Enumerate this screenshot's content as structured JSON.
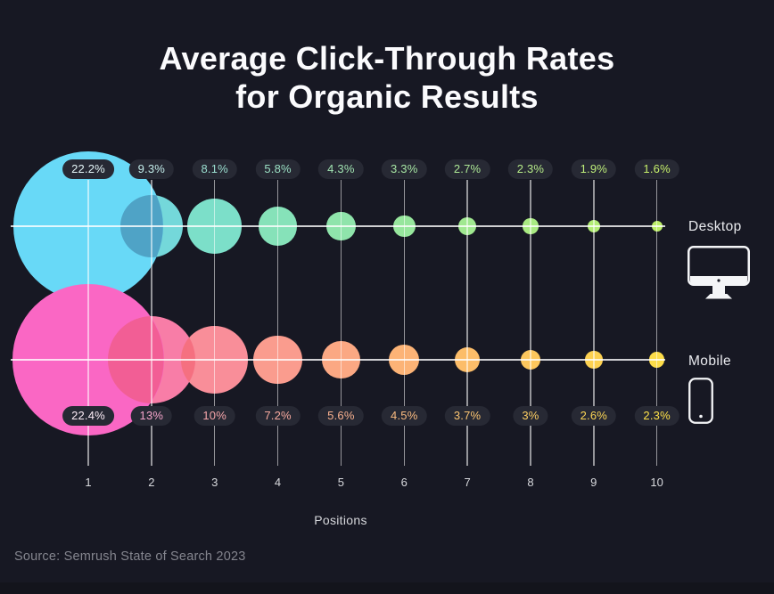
{
  "title": {
    "line1": "Average Click-Through Rates",
    "line2": "for Organic Results"
  },
  "legend": {
    "desktop_label": "Desktop",
    "mobile_label": "Mobile"
  },
  "xaxis": {
    "label": "Positions"
  },
  "source": "Source: Semrush State of Search 2023",
  "colors": {
    "background": "#171823",
    "footer_strip": "#13141c",
    "pill_background": "#272934",
    "grid_line": "rgba(255,255,255,0.55)",
    "axis_line": "rgba(255,255,255,0.8)",
    "title_text": "#fbfbfd",
    "source_text": "#84858e"
  },
  "chart_data": {
    "type": "bubble",
    "title": "Average Click-Through Rates for Organic Results",
    "xlabel": "Positions",
    "categories": [
      "1",
      "2",
      "3",
      "4",
      "5",
      "6",
      "7",
      "8",
      "9",
      "10"
    ],
    "legend_position": "right",
    "grid": true,
    "series": [
      {
        "name": "Desktop",
        "values": [
          22.2,
          9.3,
          8.1,
          5.8,
          4.3,
          3.3,
          2.7,
          2.3,
          1.9,
          1.6
        ],
        "labels": [
          "22.2%",
          "9.3%",
          "8.1%",
          "5.8%",
          "4.3%",
          "3.3%",
          "2.7%",
          "2.3%",
          "1.9%",
          "1.6%"
        ],
        "bubble_colors": [
          "#68d9f7",
          "#74d8da",
          "#7cdfc9",
          "#86e2b9",
          "#8fe4ab",
          "#97e69d",
          "#a0e890",
          "#a9ea82",
          "#b2ec75",
          "#bcee67"
        ],
        "label_colors": [
          "#e4f5f7",
          "#c2ecea",
          "#9bdfd0",
          "#9be0c4",
          "#a0e2b1",
          "#a6e5a3",
          "#ade896",
          "#b5ea88",
          "#bded7a",
          "#c6f06b"
        ]
      },
      {
        "name": "Mobile",
        "values": [
          22.4,
          13,
          10,
          7.2,
          5.6,
          4.5,
          3.7,
          3,
          2.6,
          2.3
        ],
        "labels": [
          "22.4%",
          "13%",
          "10%",
          "7.2%",
          "5.6%",
          "4.5%",
          "3.7%",
          "3%",
          "2.6%",
          "2.3%"
        ],
        "bubble_colors": [
          "#fa67c4",
          "#f87da7",
          "#f98e99",
          "#fa9c8e",
          "#fba883",
          "#fcb376",
          "#fcbd69",
          "#fdc75d",
          "#fdd151",
          "#fcdc49"
        ],
        "label_colors": [
          "#fcecf6",
          "#f4a4ca",
          "#f7a6ab",
          "#f8aa9f",
          "#f9b18f",
          "#fabb80",
          "#fbc471",
          "#fccd62",
          "#fdd755",
          "#fee149"
        ]
      }
    ],
    "overlaps": [
      {
        "row": "desktop",
        "pair": [
          1,
          2
        ],
        "color": "#4fa3c6"
      },
      {
        "row": "mobile",
        "pair": [
          1,
          2
        ],
        "color": "#f25e95"
      },
      {
        "row": "mobile",
        "pair": [
          2,
          3
        ],
        "color": "#f57080"
      }
    ]
  }
}
